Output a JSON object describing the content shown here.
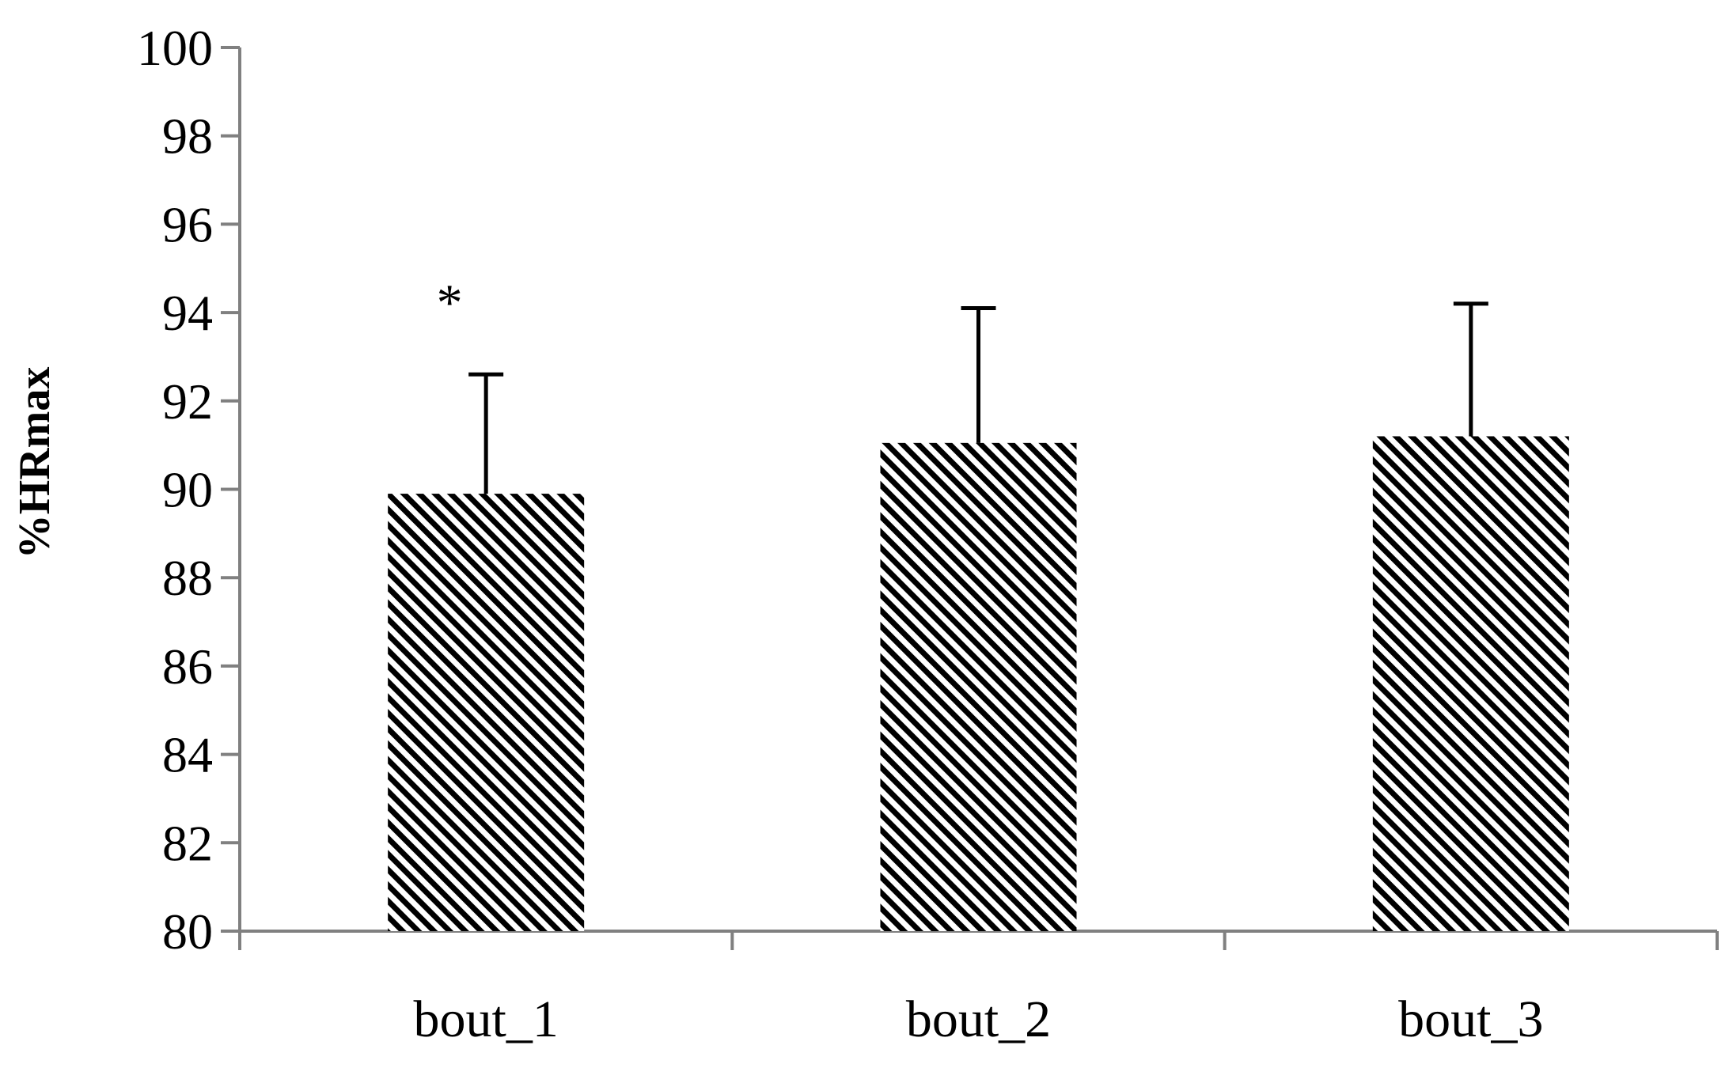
{
  "chart_data": {
    "type": "bar",
    "title": "",
    "xlabel": "",
    "ylabel": "%HRmax",
    "categories": [
      "bout_1",
      "bout_2",
      "bout_3"
    ],
    "values": [
      89.9,
      91.05,
      91.2
    ],
    "error_upper": [
      92.6,
      94.1,
      94.2
    ],
    "annotations": [
      {
        "category": "bout_1",
        "text": "*",
        "y": 94.3
      }
    ],
    "ylim": [
      80,
      100
    ],
    "yticks": [
      80,
      82,
      84,
      86,
      88,
      90,
      92,
      94,
      96,
      98,
      100
    ],
    "grid": false,
    "legend": "none",
    "bar_pattern": "diagonal-stripes",
    "colors": {
      "bar_stripe": "#000000",
      "bar_background": "#ffffff",
      "axis": "#808080",
      "error_bar": "#000000"
    }
  }
}
